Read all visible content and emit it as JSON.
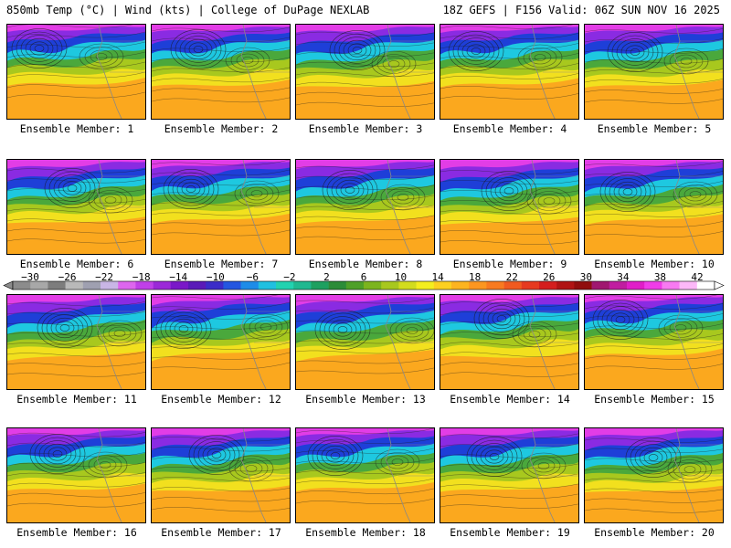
{
  "header": {
    "left": "850mb Temp (°C) | Wind (kts) | College of DuPage NEXLAB",
    "right": "18Z GEFS | F156 Valid: 06Z SUN NOV 16 2025"
  },
  "members": [
    {
      "label": "Ensemble Member: 1"
    },
    {
      "label": "Ensemble Member: 2"
    },
    {
      "label": "Ensemble Member: 3"
    },
    {
      "label": "Ensemble Member: 4"
    },
    {
      "label": "Ensemble Member: 5"
    },
    {
      "label": "Ensemble Member: 6"
    },
    {
      "label": "Ensemble Member: 7"
    },
    {
      "label": "Ensemble Member: 8"
    },
    {
      "label": "Ensemble Member: 9"
    },
    {
      "label": "Ensemble Member: 10"
    },
    {
      "label": "Ensemble Member: 11"
    },
    {
      "label": "Ensemble Member: 12"
    },
    {
      "label": "Ensemble Member: 13"
    },
    {
      "label": "Ensemble Member: 14"
    },
    {
      "label": "Ensemble Member: 15"
    },
    {
      "label": "Ensemble Member: 16"
    },
    {
      "label": "Ensemble Member: 17"
    },
    {
      "label": "Ensemble Member: 18"
    },
    {
      "label": "Ensemble Member: 19"
    },
    {
      "label": "Ensemble Member: 20"
    }
  ],
  "colorbar": {
    "labels": [
      "−30",
      "−26",
      "−22",
      "−18",
      "−14",
      "−10",
      "−6",
      "−2",
      "2",
      "6",
      "10",
      "14",
      "18",
      "22",
      "26",
      "30",
      "34",
      "38",
      "42"
    ],
    "colors": [
      "#8c8c8c",
      "#a8a8a8",
      "#7d7d7d",
      "#b9b9b9",
      "#9fa0b0",
      "#c9b6e6",
      "#dd66ee",
      "#c040e8",
      "#9b28d8",
      "#7a18c8",
      "#5a1ab8",
      "#3b2cc8",
      "#2456e0",
      "#1e8ce8",
      "#20c0e0",
      "#22d2b0",
      "#20b890",
      "#1ea060",
      "#2c8c38",
      "#4ea028",
      "#7cb41e",
      "#a8c81e",
      "#d2dc1e",
      "#f4ee1e",
      "#fcd020",
      "#fcb420",
      "#fc9620",
      "#f87a20",
      "#f05a20",
      "#e63a20",
      "#d41e1e",
      "#b01414",
      "#900e0e",
      "#a01870",
      "#c01ea0",
      "#e01ec8",
      "#f03ce8",
      "#f87af2",
      "#fcb8f8",
      "#ffffff"
    ]
  },
  "palette": {
    "magenta": "#e23de6",
    "purple": "#8a2be2",
    "blue": "#1e3fd8",
    "cyan": "#1ec8e0",
    "green": "#4aa83c",
    "lime": "#a8c81e",
    "yellow": "#f2e01e",
    "orange": "#fba81e",
    "gray": "#888888"
  }
}
